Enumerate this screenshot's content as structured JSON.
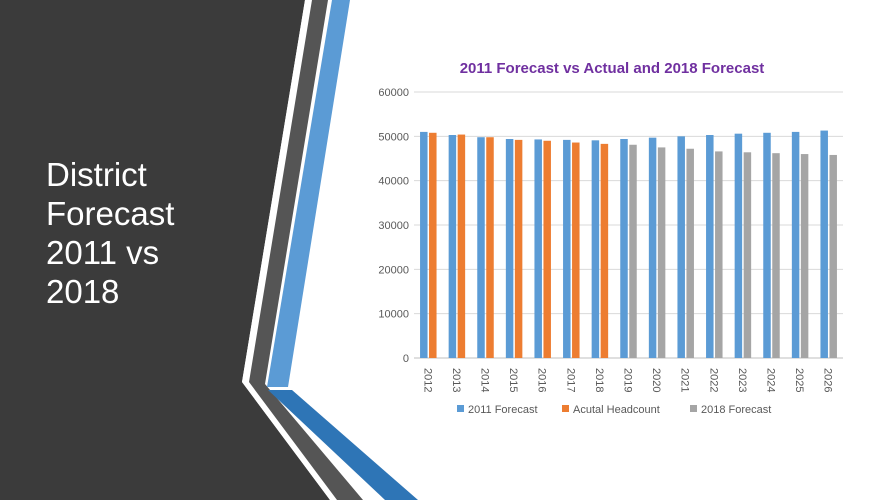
{
  "slide": {
    "title_lines": [
      "District",
      "Forecast",
      "2011 vs",
      "2018"
    ]
  },
  "chart_data": {
    "type": "bar",
    "title": "2011 Forecast vs Actual and 2018 Forecast",
    "categories": [
      "2012",
      "2013",
      "2014",
      "2015",
      "2016",
      "2017",
      "2018",
      "2019",
      "2020",
      "2021",
      "2022",
      "2023",
      "2024",
      "2025",
      "2026"
    ],
    "series": [
      {
        "name": "2011 Forecast",
        "color": "#5b9bd5",
        "values": [
          51000,
          50300,
          49800,
          49400,
          49300,
          49200,
          49100,
          49400,
          49700,
          50000,
          50300,
          50600,
          50800,
          51000,
          51300
        ]
      },
      {
        "name": "Acutal Headcount",
        "color": "#ed7d31",
        "values": [
          50800,
          50400,
          49800,
          49200,
          49000,
          48600,
          48300,
          null,
          null,
          null,
          null,
          null,
          null,
          null,
          null
        ]
      },
      {
        "name": "2018 Forecast",
        "color": "#a5a5a5",
        "values": [
          null,
          null,
          null,
          null,
          null,
          null,
          null,
          48100,
          47500,
          47200,
          46600,
          46400,
          46200,
          46000,
          45800
        ]
      }
    ],
    "ylim": [
      0,
      60000
    ],
    "yticks": [
      0,
      10000,
      20000,
      30000,
      40000,
      50000,
      60000
    ],
    "grid": true,
    "legend": "bottom"
  }
}
